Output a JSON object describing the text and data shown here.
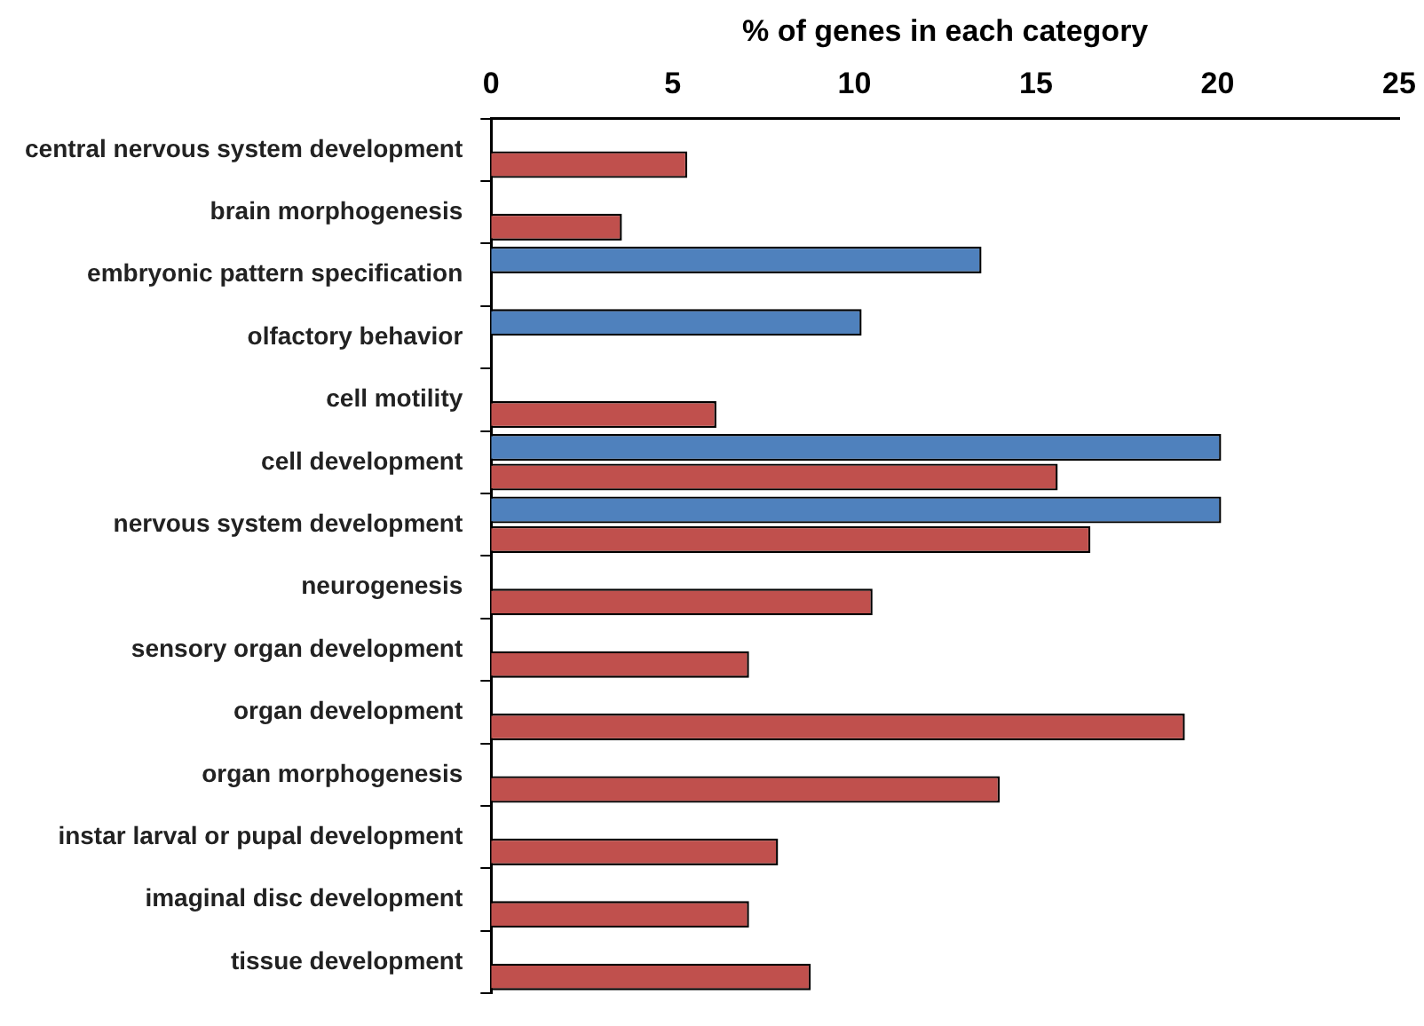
{
  "chart_data": {
    "type": "bar",
    "orientation": "horizontal",
    "xlabel": "% of genes in each category",
    "categories": [
      "central nervous system development",
      "brain morphogenesis",
      "embryonic pattern specification",
      "olfactory behavior",
      "cell motility",
      "cell development",
      "nervous system development",
      "neurogenesis",
      "sensory organ development",
      "organ development",
      "organ morphogenesis",
      "instar larval or pupal development",
      "imaginal disc development",
      "tissue development"
    ],
    "series": [
      {
        "color": "#4f81bd",
        "values": [
          null,
          null,
          13.5,
          10.2,
          null,
          20.1,
          20.1,
          null,
          null,
          null,
          null,
          null,
          null,
          null
        ]
      },
      {
        "color": "#c0504d",
        "values": [
          5.4,
          3.6,
          null,
          null,
          6.2,
          15.6,
          16.5,
          10.5,
          7.1,
          19.1,
          14.0,
          7.9,
          7.1,
          8.8
        ]
      }
    ],
    "xlim": [
      0,
      25
    ],
    "xticks": [
      0,
      5,
      10,
      15,
      20,
      25
    ],
    "grid": false,
    "legend": false
  }
}
